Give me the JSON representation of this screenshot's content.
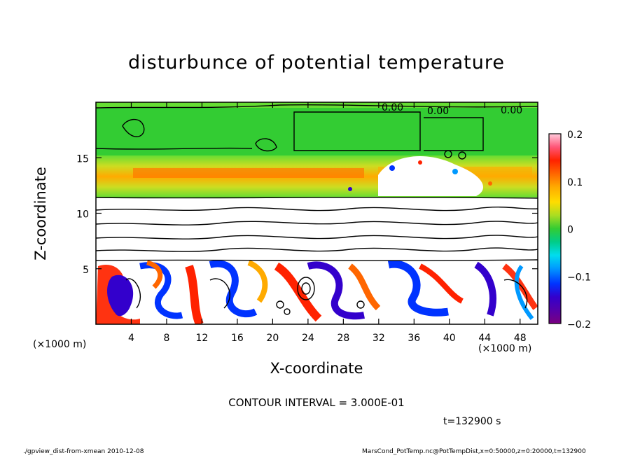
{
  "chart_data": {
    "type": "heatmap",
    "title": "disturbunce of potential temperature",
    "xlabel": "X-coordinate",
    "ylabel": "Z-coordinate",
    "x_unit_left": "(×1000 m)",
    "x_unit_right": "(×1000 m)",
    "xlim": [
      0,
      50
    ],
    "ylim": [
      0,
      20
    ],
    "x_ticks": [
      4,
      8,
      12,
      16,
      20,
      24,
      28,
      32,
      36,
      40,
      44,
      48
    ],
    "x_tick_labels": [
      "4",
      "8",
      "12",
      "16",
      "20",
      "24",
      "28",
      "32",
      "36",
      "40",
      "44",
      "48"
    ],
    "y_ticks": [
      5,
      10,
      15
    ],
    "y_tick_labels": [
      "5",
      "10",
      "15"
    ],
    "colorbar": {
      "range": [
        -0.2,
        0.2
      ],
      "tick_values": [
        0.2,
        0.1,
        0,
        -0.1,
        -0.2
      ],
      "tick_labels": [
        "0.2",
        "0.1",
        "0",
        "−0.1",
        "−0.2"
      ],
      "colors": [
        "#7a0080",
        "#3300cc",
        "#0033ff",
        "#0099ff",
        "#00ddee",
        "#00cc88",
        "#33cc33",
        "#66dd33",
        "#aadd22",
        "#ffdd00",
        "#ffaa00",
        "#ff6600",
        "#ff2200",
        "#ff5577",
        "#ffaabb"
      ]
    },
    "contour_labels": [
      "0.00",
      "0.00",
      "0.00"
    ],
    "contour_interval": "CONTOUR INTERVAL = 3.000E-01",
    "time": "t=132900 s"
  },
  "footer": {
    "left": "./gpview_dist-from-xmean  2010-12-08",
    "right": "MarsCond_PotTemp.nc@PotTempDist,x=0:50000,z=0:20000,t=132900"
  }
}
